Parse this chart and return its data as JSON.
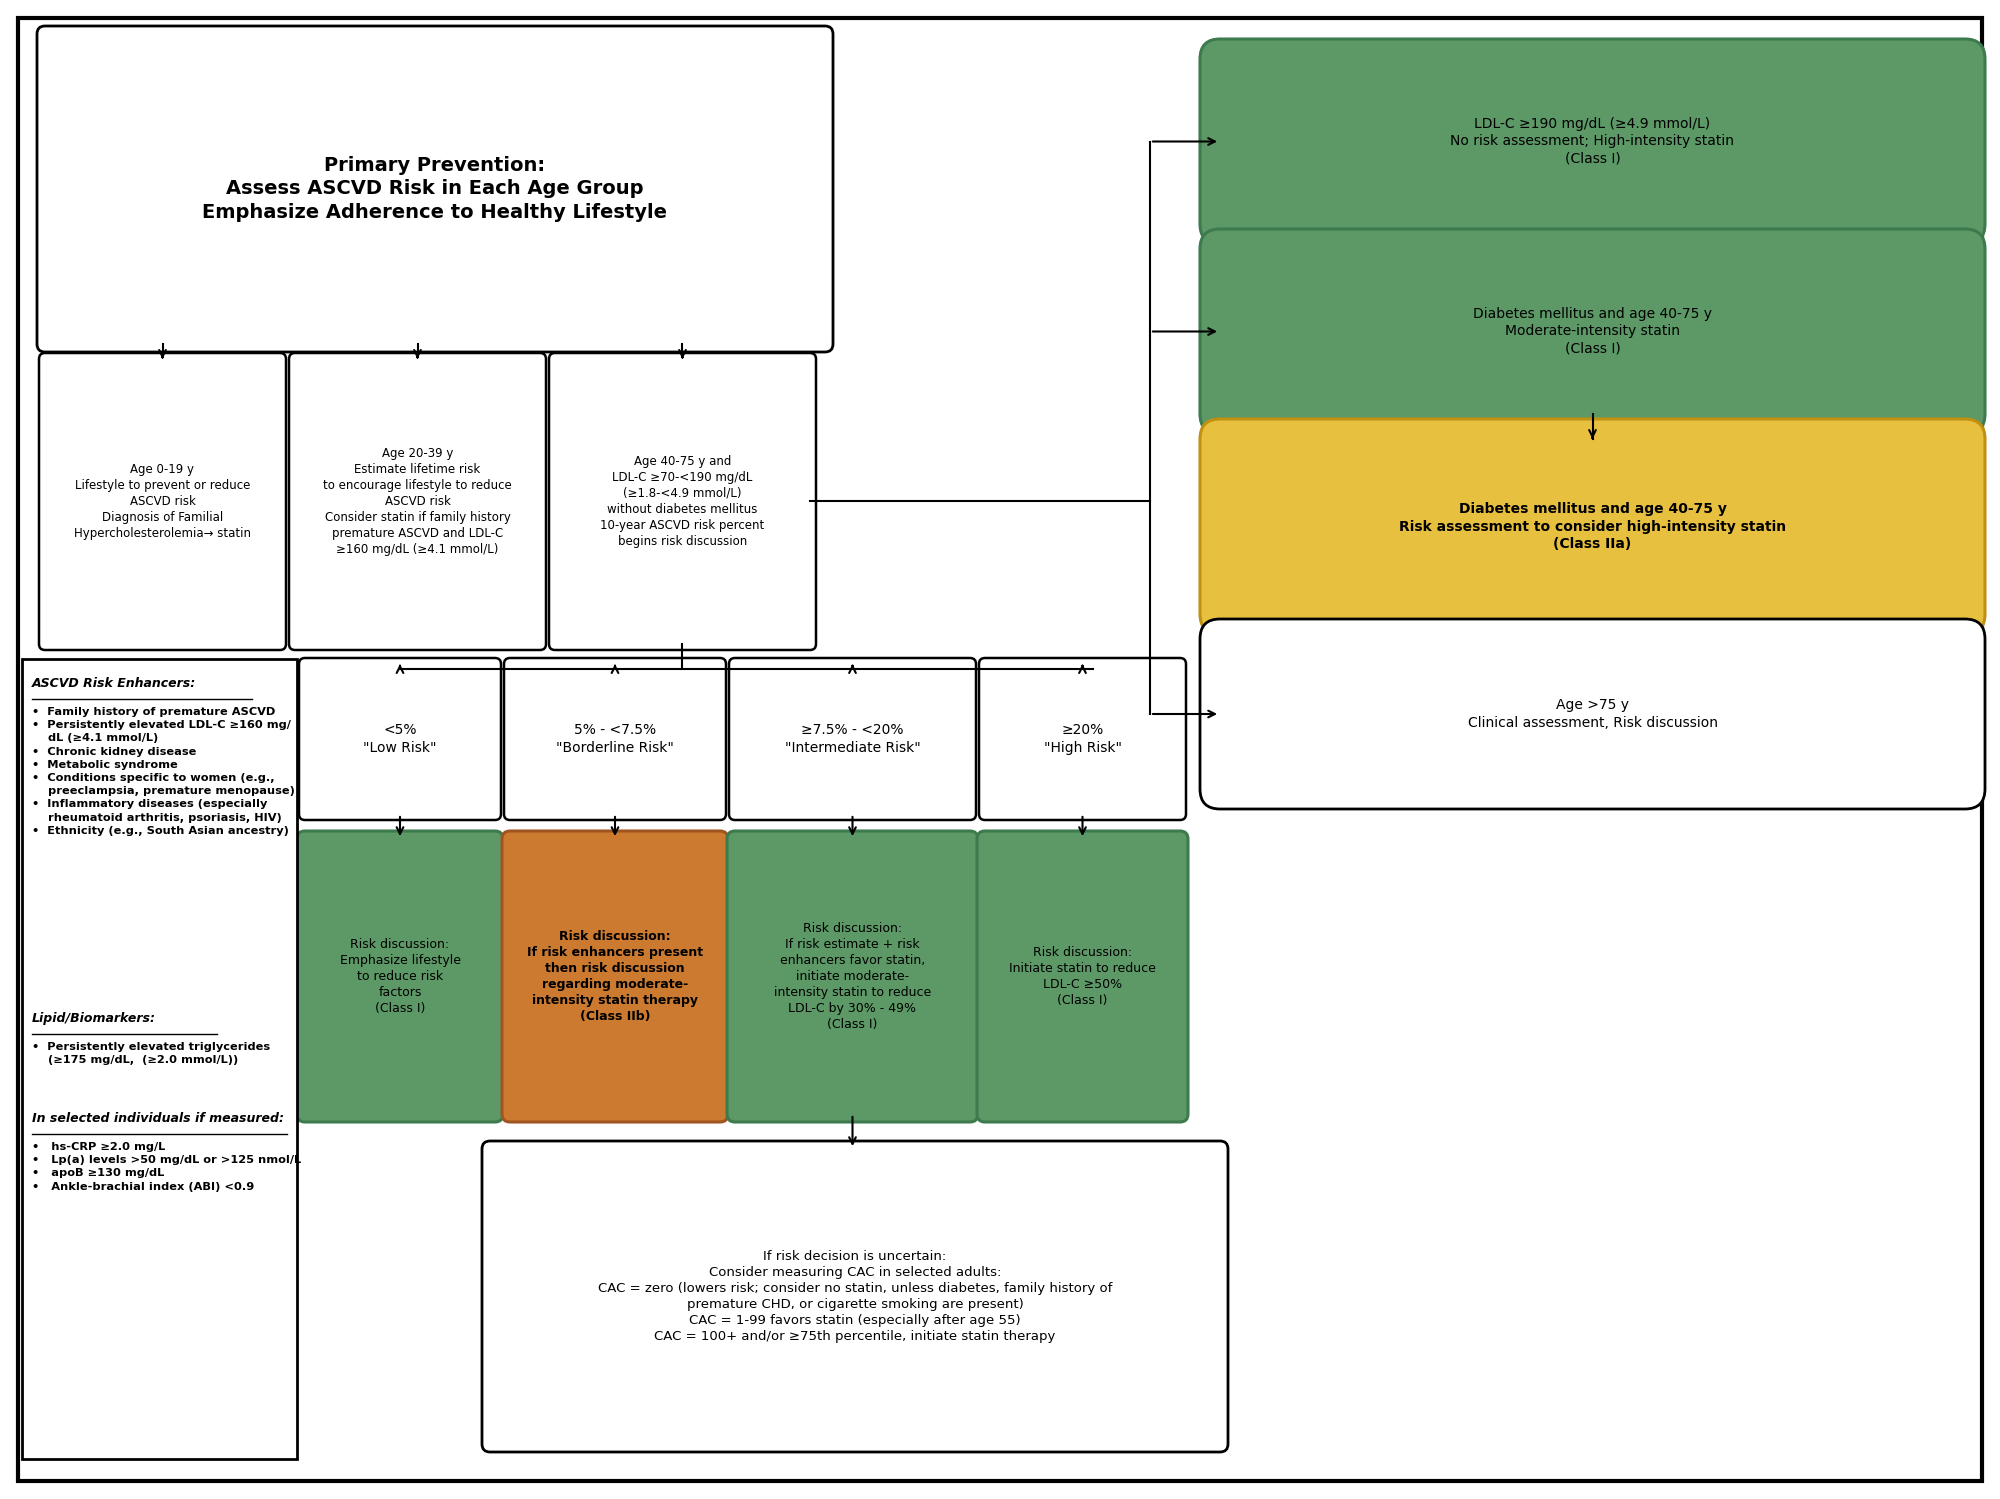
{
  "bg_color": "#ffffff",
  "green_fill": "#5c9966",
  "green_edge": "#3d7a4d",
  "orange_fill": "#cc7a30",
  "orange_edge": "#a05520",
  "yellow_fill": "#e8c040",
  "yellow_edge": "#c09010",
  "white_fill": "#ffffff",
  "black": "#000000",
  "title_text": "Primary Prevention:\nAssess ASCVD Risk in Each Age Group\nEmphasize Adherence to Healthy Lifestyle",
  "box_age019": "Age 0-19 y\nLifestyle to prevent or reduce\nASCVD risk\nDiagnosis of Familial\nHypercholesterolemia→ statin",
  "box_age2039": "Age 20-39 y\nEstimate lifetime risk\nto encourage lifestyle to reduce\nASCVD risk\nConsider statin if family history\npremature ASCVD and LDL-C\n≥160 mg/dL (≥4.1 mmol/L)",
  "box_age4075": "Age 40-75 y and\nLDL-C ≥70-<190 mg/dL\n(≥1.8-<4.9 mmol/L)\nwithout diabetes mellitus\n10-year ASCVD risk percent\nbegins risk discussion",
  "green_box1": "LDL-C ≥190 mg/dL (≥4.9 mmol/L)\nNo risk assessment; High-intensity statin\n(Class I)",
  "green_box2": "Diabetes mellitus and age 40-75 y\nModerate-intensity statin\n(Class I)",
  "yellow_box": "Diabetes mellitus and age 40-75 y\nRisk assessment to consider high-intensity statin\n(Class IIa)",
  "white_box_75": "Age >75 y\nClinical assessment, Risk discussion",
  "risk_lt5": "<5%\n\"Low Risk\"",
  "risk_5_75": "5% - <7.5%\n\"Borderline Risk\"",
  "risk_75_20": "≥7.5% - <20%\n\"Intermediate Risk\"",
  "risk_ge20": "≥20%\n\"High Risk\"",
  "rd_green1": "Risk discussion:\nEmphasize lifestyle\nto reduce risk\nfactors\n(Class I)",
  "rd_orange": "Risk discussion:\nIf risk enhancers present\nthen risk discussion\nregarding moderate-\nintensity statin therapy\n(Class IIb)",
  "rd_green2": "Risk discussion:\nIf risk estimate + risk\nenhancers favor statin,\ninitiate moderate-\nintensity statin to reduce\nLDL-C by 30% - 49%\n(Class I)",
  "rd_green3": "Risk discussion:\nInitiate statin to reduce\nLDL-C ≥50%\n(Class I)",
  "cac_box": "If risk decision is uncertain:\nConsider measuring CAC in selected adults:\nCAC = zero (lowers risk; consider no statin, unless diabetes, family history of\npremature CHD, or cigarette smoking are present)\nCAC = 1-99 favors statin (especially after age 55)\nCAC = 100+ and/or ≥75th percentile, initiate statin therapy",
  "re_title": "ASCVD Risk Enhancers:",
  "re_body": "•  Family history of premature ASCVD\n•  Persistently elevated LDL-C ≥160 mg/\n    dL (≥4.1 mmol/L)\n•  Chronic kidney disease\n•  Metabolic syndrome\n•  Conditions specific to women (e.g.,\n    preeclampsia, premature menopause)\n•  Inflammatory diseases (especially\n    rheumatoid arthritis, psoriasis, HIV)\n•  Ethnicity (e.g., South Asian ancestry)",
  "lipid_title": "Lipid/Biomarkers:",
  "lipid_body": "•  Persistently elevated triglycerides\n    (≥175 mg/dL,  (≥2.0 mmol/L))",
  "selected_title": "In selected individuals if measured:",
  "selected_body": "•   hs-CRP ≥2.0 mg/L\n•   Lp(a) levels >50 mg/dL or >125 nmol/L\n•   apoB ≥130 mg/dL\n•   Ankle-brachial index (ABI) <0.9"
}
